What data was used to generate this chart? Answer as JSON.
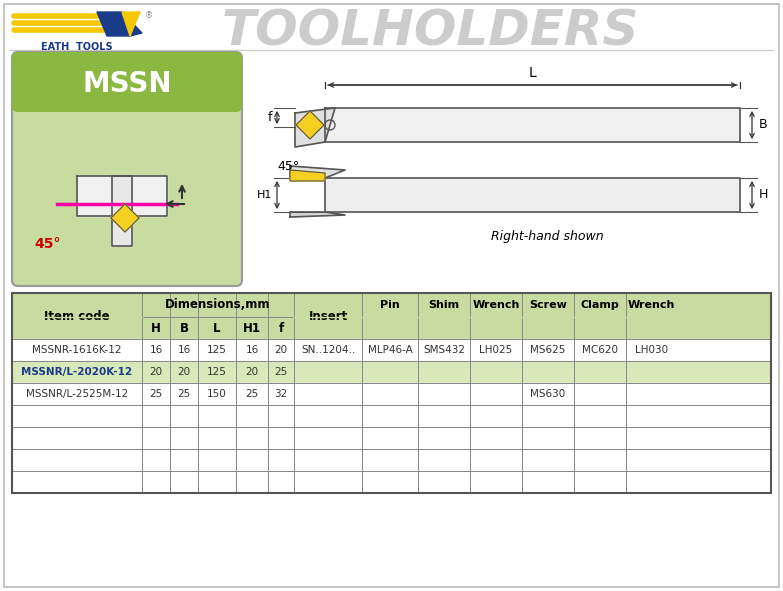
{
  "title": "TOOLHOLDERS",
  "title_color": "#cccccc",
  "title_fontsize": 36,
  "bg_color": "#ffffff",
  "logo_text1": "EATH TOOLS",
  "mssn_label": "MSSN",
  "angle_label": "45°",
  "right_hand_label": "Right-hand shown",
  "table_header_bg": "#c8dba0",
  "table_row2_bg": "#d8e8b8",
  "yellow_color": "#f5d020",
  "pink_color": "#ff00aa",
  "green_box_bg": "#c8dba0",
  "green_banner_bg": "#8ab840",
  "dim_label": "Dimensions,mm",
  "schematic_label_L": "L",
  "schematic_label_f": "f",
  "schematic_label_B": "B",
  "schematic_label_H1": "H1",
  "schematic_label_H": "H",
  "schematic_label_45": "45°",
  "rows": [
    [
      "MSSNR-1616K-12",
      "16",
      "16",
      "125",
      "16",
      "20",
      "SN..1204..",
      "MLP46-A",
      "SMS432",
      "LH025",
      "MS625",
      "MC620",
      "LH030"
    ],
    [
      "MSSNR/L-2020K-12",
      "20",
      "20",
      "125",
      "20",
      "25",
      "",
      "",
      "",
      "",
      "",
      "",
      ""
    ],
    [
      "MSSNR/L-2525M-12",
      "25",
      "25",
      "150",
      "25",
      "32",
      "",
      "",
      "",
      "",
      "MS630",
      "",
      ""
    ]
  ]
}
